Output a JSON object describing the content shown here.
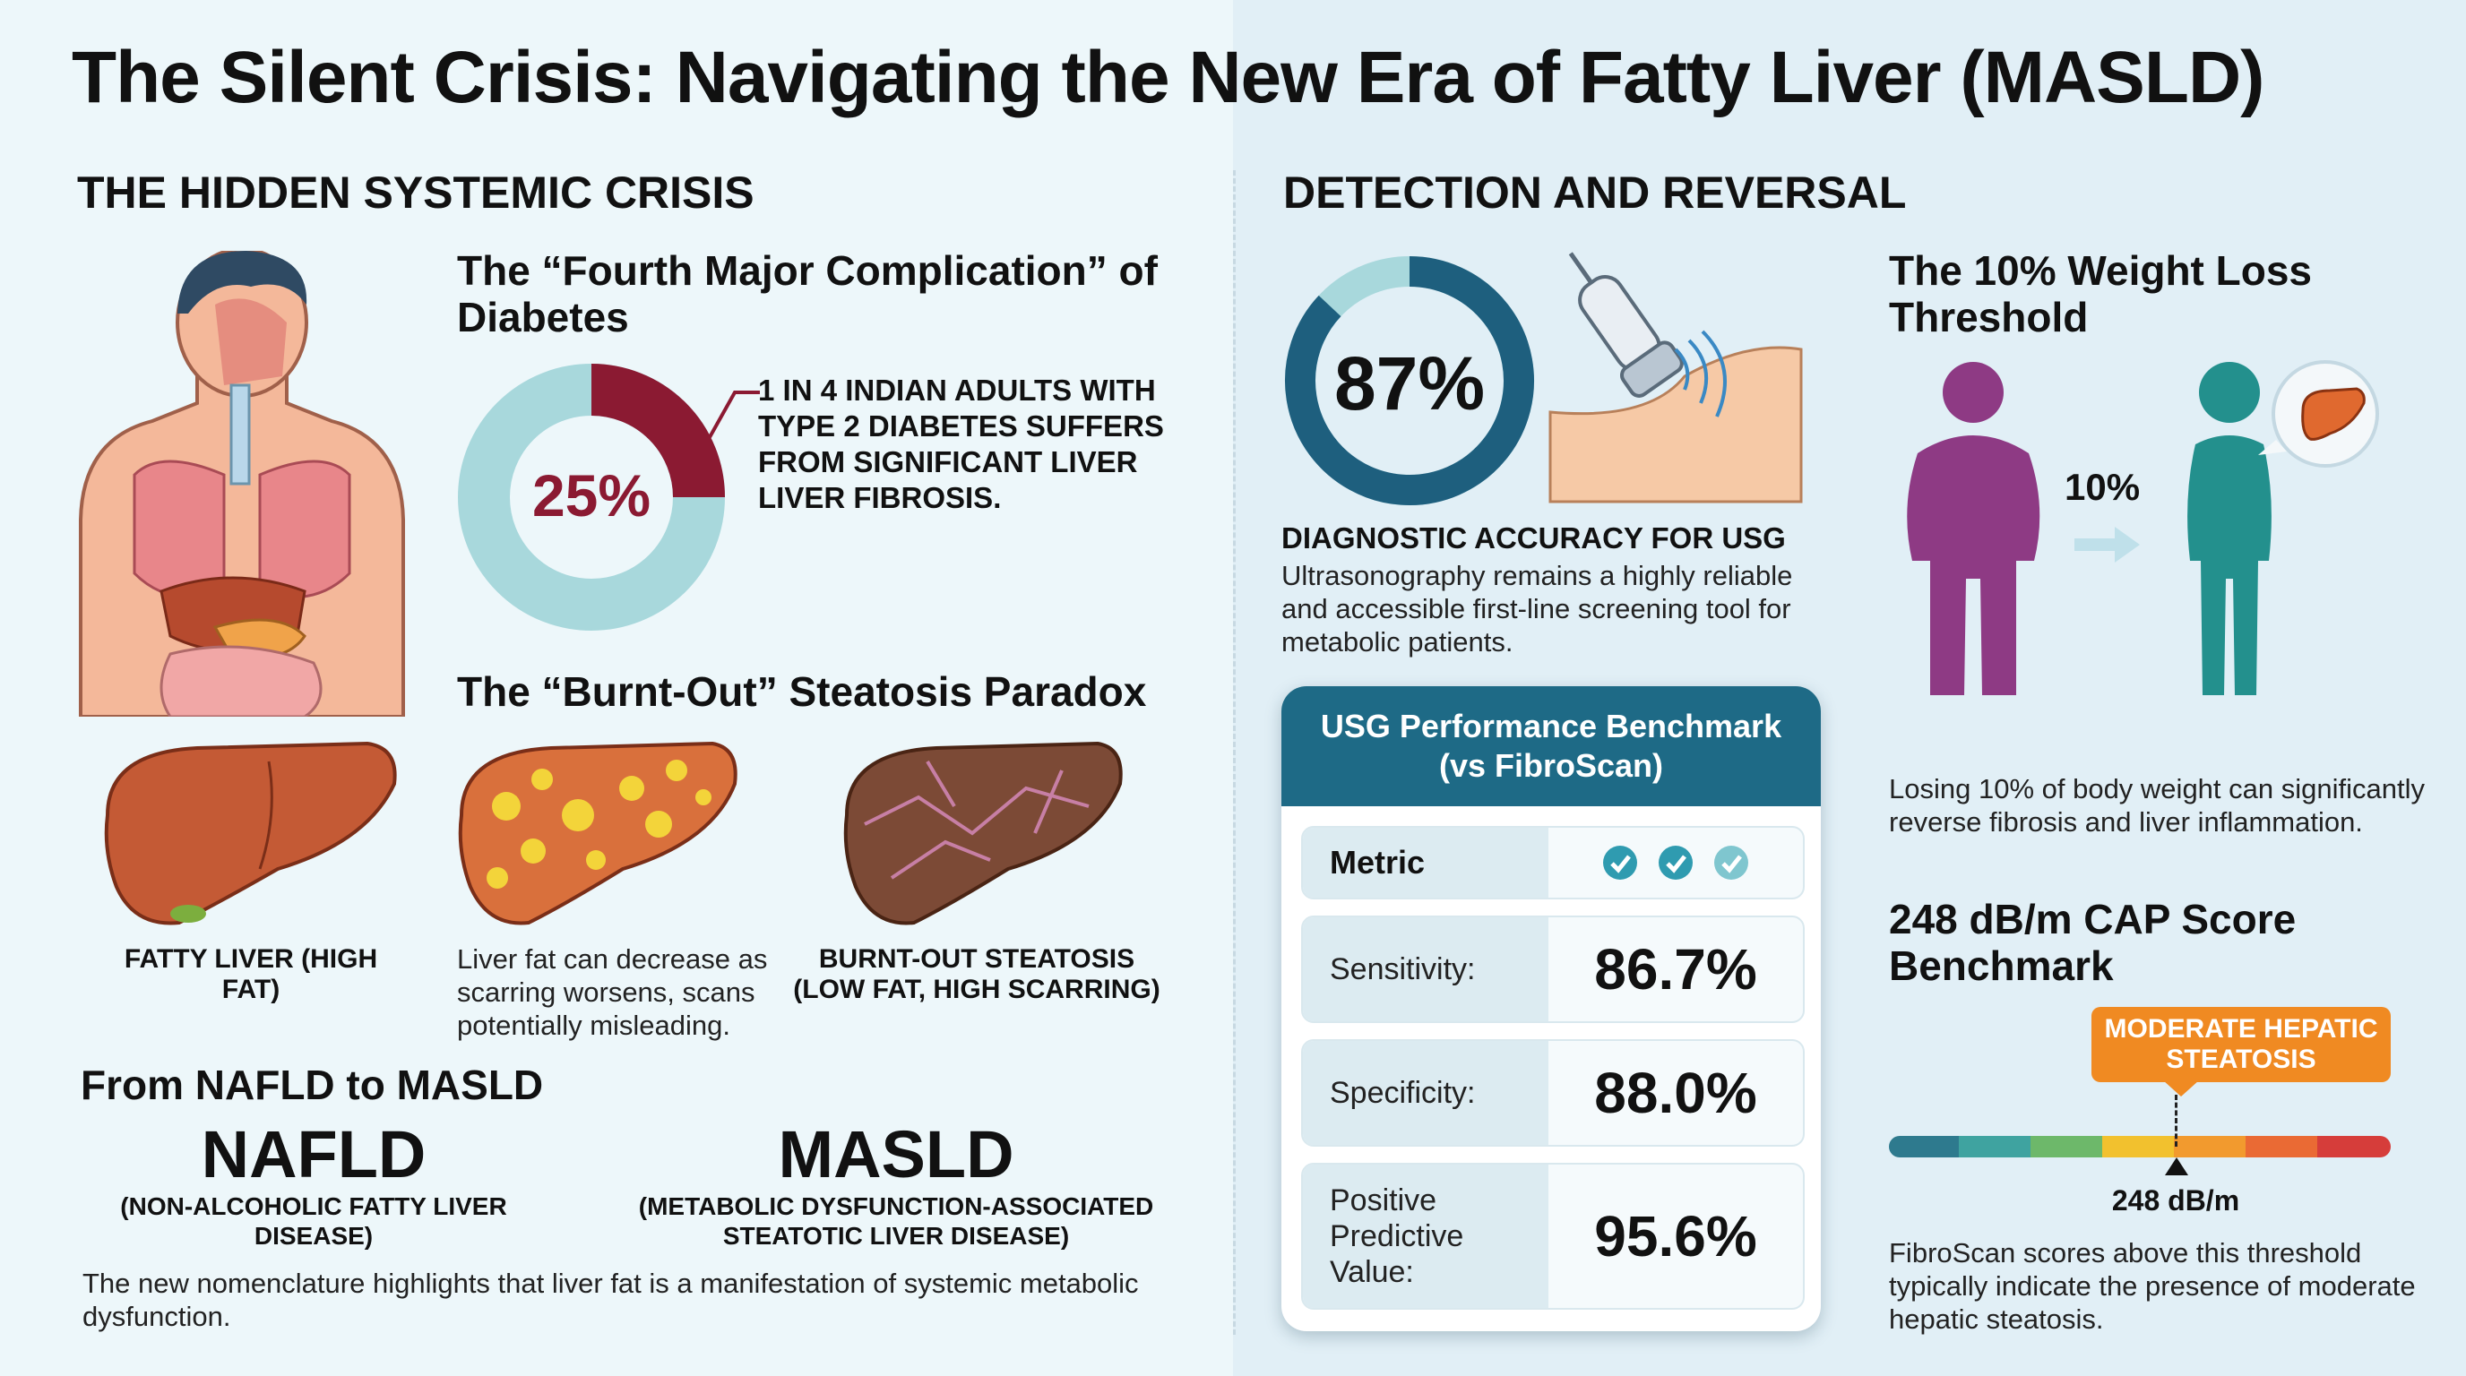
{
  "title": "The Silent Crisis: Navigating the New Era of Fatty Liver (MASLD)",
  "colors": {
    "maroon": "#8b1a32",
    "teal_light": "#a8d8dc",
    "navy": "#1e5f7e",
    "purple": "#8e3a84",
    "teal": "#23908d",
    "orange": "#f08a22"
  },
  "left": {
    "heading": "THE HIDDEN SYSTEMIC CRISIS",
    "complication": {
      "title": "The “Fourth Major Complication” of Diabetes",
      "percent_label": "25%",
      "percent_value": 25,
      "note": "1 IN 4 INDIAN ADULTS WITH TYPE 2 DIABETES SUFFERS FROM SIGNIFICANT LIVER LIVER FIBROSIS."
    },
    "paradox": {
      "title": "The “Burnt-Out” Steatosis Paradox",
      "fatty_label": "FATTY LIVER (HIGH FAT)",
      "middle_text": "Liver fat can decrease as scarring worsens, scans potentially misleading.",
      "burnt_label": "BURNT-OUT STEATOSIS (LOW FAT, HIGH SCARRING)"
    },
    "nomenclature": {
      "title": "From NAFLD to MASLD",
      "old_abbr": "NAFLD",
      "old_full": "(NON-ALCOHOLIC FATTY LIVER DISEASE)",
      "new_abbr": "MASLD",
      "new_full": "(METABOLIC DYSFUNCTION-ASSOCIATED STEATOTIC LIVER DISEASE)",
      "note": "The new nomenclature highlights that liver fat is a manifestation of systemic metabolic dysfunction."
    }
  },
  "right": {
    "heading": "DETECTION AND REVERSAL",
    "accuracy": {
      "percent_label": "87%",
      "percent_value": 87,
      "title": "DIAGNOSTIC ACCURACY FOR USG",
      "text": "Ultrasonography remains a highly reliable and accessible first-line screening tool for metabolic patients."
    },
    "benchmark": {
      "title_line1": "USG Performance Benchmark",
      "title_line2": "(vs FibroScan)",
      "metric_label": "Metric",
      "rows": [
        {
          "label": "Sensitivity:",
          "value": "86.7%"
        },
        {
          "label": "Specificity:",
          "value": "88.0%"
        },
        {
          "label": "Positive Predictive Value:",
          "value": "95.6%"
        }
      ]
    },
    "weight": {
      "title": "The 10% Weight Loss Threshold",
      "percent_label": "10%",
      "text": "Losing 10% of body weight can significantly reverse fibrosis and liver inflammation."
    },
    "cap": {
      "title": "248 dB/m CAP Score Benchmark",
      "badge": "MODERATE HEPATIC STEATOSIS",
      "marker_label": "248 dB/m",
      "text": "FibroScan scores above this threshold typically indicate the presence of moderate hepatic steatosis."
    }
  }
}
